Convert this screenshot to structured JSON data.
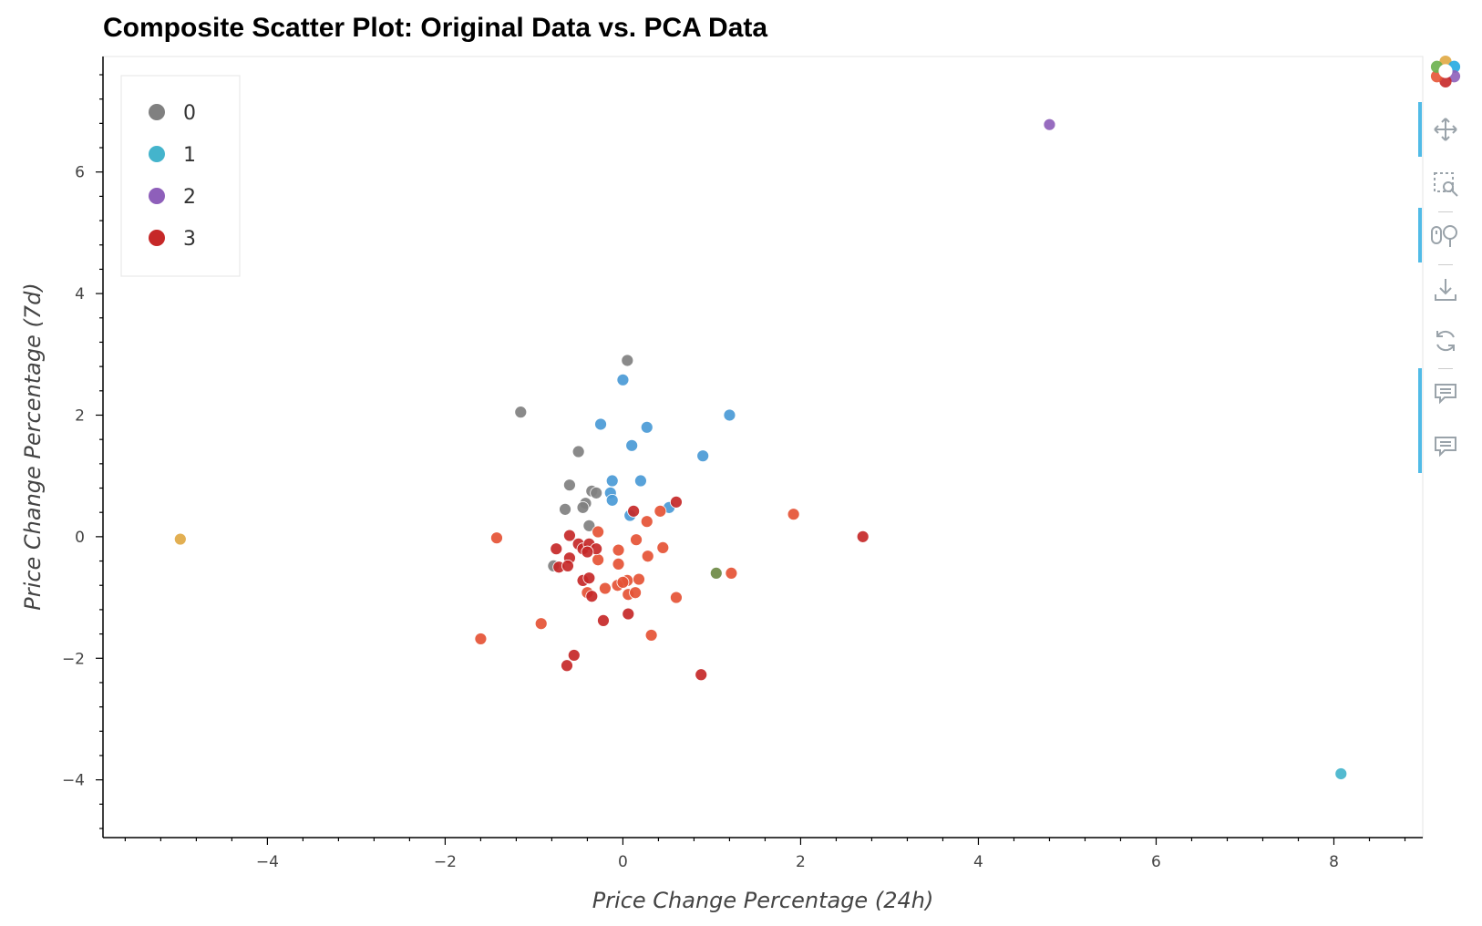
{
  "chart_data": {
    "type": "scatter",
    "title": "Composite Scatter Plot: Original Data vs. PCA Data",
    "xlabel": "Price Change Percentage (24h)",
    "ylabel": "Price Change Percentage (7d)",
    "xlim": [
      -5.85,
      9.0
    ],
    "ylim": [
      -4.95,
      7.9
    ],
    "xticks": [
      -4,
      -2,
      0,
      2,
      4,
      6,
      8
    ],
    "yticks": [
      -4,
      -2,
      0,
      2,
      4,
      6
    ],
    "xtick_labels": [
      "−4",
      "−2",
      "0",
      "2",
      "4",
      "6",
      "8"
    ],
    "ytick_labels": [
      "−4",
      "−2",
      "0",
      "2",
      "4",
      "6"
    ],
    "grid": false,
    "legend_position": "top-left",
    "legend": [
      {
        "label": "0",
        "color": "#808080"
      },
      {
        "label": "1",
        "color": "#44b4cc"
      },
      {
        "label": "2",
        "color": "#8e5fba"
      },
      {
        "label": "3",
        "color": "#c62828"
      }
    ],
    "series": [
      {
        "color": "#808080",
        "points": [
          [
            0.05,
            2.9
          ],
          [
            -1.15,
            2.05
          ],
          [
            -0.5,
            1.4
          ],
          [
            -0.6,
            0.85
          ],
          [
            -0.35,
            0.75
          ],
          [
            -0.3,
            0.72
          ],
          [
            -0.42,
            0.55
          ],
          [
            -0.45,
            0.48
          ],
          [
            -0.65,
            0.45
          ],
          [
            -0.38,
            0.18
          ],
          [
            -0.78,
            -0.48
          ]
        ]
      },
      {
        "color": "#4a9ad6",
        "points": [
          [
            0.0,
            2.58
          ],
          [
            -0.25,
            1.85
          ],
          [
            0.27,
            1.8
          ],
          [
            1.2,
            2.0
          ],
          [
            0.1,
            1.5
          ],
          [
            0.9,
            1.33
          ],
          [
            -0.12,
            0.92
          ],
          [
            0.2,
            0.92
          ],
          [
            -0.14,
            0.72
          ],
          [
            -0.12,
            0.6
          ],
          [
            0.52,
            0.48
          ],
          [
            0.08,
            0.35
          ]
        ]
      },
      {
        "color": "#44b4cc",
        "points": [
          [
            8.08,
            -3.9
          ]
        ]
      },
      {
        "color": "#8e5fba",
        "points": [
          [
            4.8,
            6.78
          ]
        ]
      },
      {
        "color": "#e0a843",
        "points": [
          [
            -4.98,
            -0.04
          ]
        ]
      },
      {
        "color": "#6e8a45",
        "points": [
          [
            1.05,
            -0.6
          ]
        ]
      },
      {
        "color": "#e55335",
        "points": [
          [
            1.92,
            0.37
          ],
          [
            -1.42,
            -0.02
          ],
          [
            -0.28,
            0.08
          ],
          [
            0.27,
            0.25
          ],
          [
            0.42,
            0.42
          ],
          [
            -0.05,
            -0.22
          ],
          [
            0.45,
            -0.18
          ],
          [
            0.28,
            -0.32
          ],
          [
            0.15,
            -0.05
          ],
          [
            -0.28,
            -0.38
          ],
          [
            -0.05,
            -0.45
          ],
          [
            0.05,
            -0.72
          ],
          [
            0.18,
            -0.7
          ],
          [
            -0.06,
            -0.8
          ],
          [
            0.0,
            -0.75
          ],
          [
            0.06,
            -0.95
          ],
          [
            0.14,
            -0.92
          ],
          [
            -0.2,
            -0.85
          ],
          [
            -0.4,
            -0.92
          ],
          [
            0.6,
            -1.0
          ],
          [
            1.22,
            -0.6
          ],
          [
            0.32,
            -1.62
          ],
          [
            -0.92,
            -1.43
          ],
          [
            -1.6,
            -1.68
          ]
        ]
      },
      {
        "color": "#c62828",
        "points": [
          [
            0.12,
            0.42
          ],
          [
            0.6,
            0.57
          ],
          [
            2.7,
            0.0
          ],
          [
            -0.6,
            0.02
          ],
          [
            -0.5,
            -0.12
          ],
          [
            -0.45,
            -0.2
          ],
          [
            -0.38,
            -0.12
          ],
          [
            -0.3,
            -0.2
          ],
          [
            -0.4,
            -0.25
          ],
          [
            -0.75,
            -0.2
          ],
          [
            -0.6,
            -0.35
          ],
          [
            -0.72,
            -0.5
          ],
          [
            -0.62,
            -0.48
          ],
          [
            -0.45,
            -0.72
          ],
          [
            -0.38,
            -0.68
          ],
          [
            -0.35,
            -0.98
          ],
          [
            -0.22,
            -1.38
          ],
          [
            0.06,
            -1.27
          ],
          [
            -0.55,
            -1.95
          ],
          [
            -0.63,
            -2.12
          ],
          [
            0.88,
            -2.27
          ]
        ]
      }
    ]
  },
  "toolbar": {
    "tools": [
      "pan-tool",
      "box-zoom-tool",
      "wheel-zoom-tool",
      "save-tool",
      "reset-tool",
      "hover-tool",
      "hover-tool-2"
    ]
  }
}
